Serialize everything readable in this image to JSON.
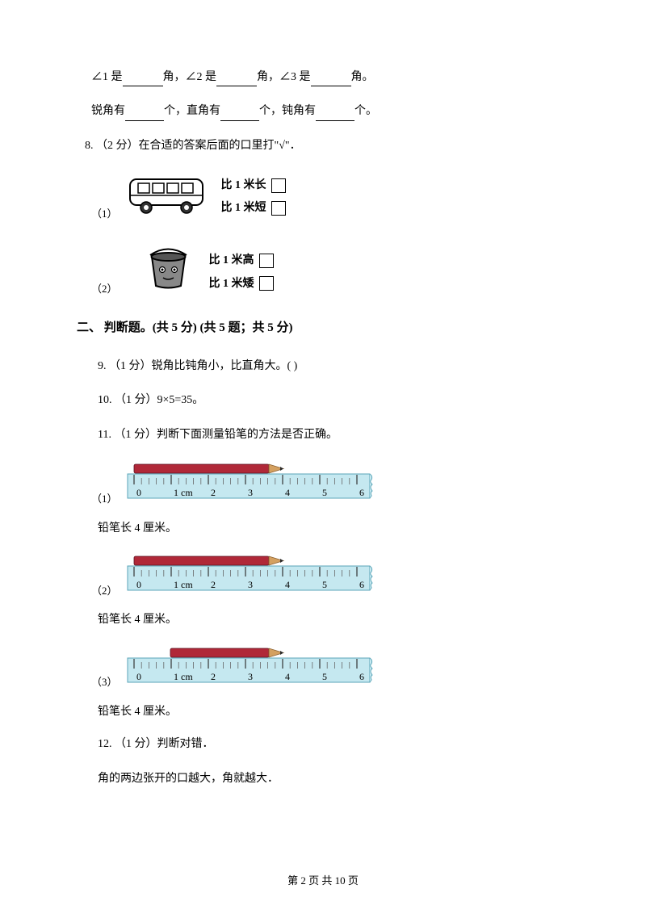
{
  "q7": {
    "l1p1": "∠1 是",
    "l1p2": "角，∠2 是",
    "l1p3": "角，∠3 是",
    "l1p4": "角。",
    "l2p1": "锐角有",
    "l2p2": "个，直角有",
    "l2p3": "个，钝角有",
    "l2p4": "个。"
  },
  "q8": {
    "prompt": "8. （2 分）在合适的答案后面的口里打\"√\"．",
    "part1_num": "（1）",
    "part1_opt1": "比 1 米长",
    "part1_opt2": "比 1 米短",
    "part2_num": "（2）",
    "part2_opt1": "比 1 米高",
    "part2_opt2": "比 1 米矮"
  },
  "section2_title": "二、 判断题。(共 5 分)  (共 5 题；共 5 分)",
  "q9": "9. （1 分）锐角比钝角小，比直角大。(     )",
  "q10": "10. （1 分）9×5=35。",
  "q11": {
    "prompt": "11. （1 分）判断下面测量铅笔的方法是否正确。",
    "r1_num": "（1）",
    "r1_text": "铅笔长 4 厘米。",
    "r2_num": "（2）",
    "r2_text": "铅笔长 4 厘米。",
    "r3_num": "（3）",
    "r3_text": "铅笔长 4 厘米。",
    "ruler_labels": [
      "0",
      "1 cm",
      "2",
      "3",
      "4",
      "5",
      "6"
    ]
  },
  "q12": {
    "prompt": "12. （1 分）判断对错．",
    "body": "角的两边张开的口越大，角就越大．"
  },
  "footer": "第 2 页 共 10 页",
  "colors": {
    "ruler_bg": "#c5e8f0",
    "ruler_border": "#5aa5b8",
    "pencil_body": "#b02838",
    "pencil_tip": "#d4a060",
    "pencil_lead": "#2a2a2a"
  },
  "pencil_positions": {
    "r1": {
      "start": 10,
      "end": 195
    },
    "r2": {
      "start": 10,
      "end": 195
    },
    "r3": {
      "start": 55,
      "end": 195
    }
  }
}
